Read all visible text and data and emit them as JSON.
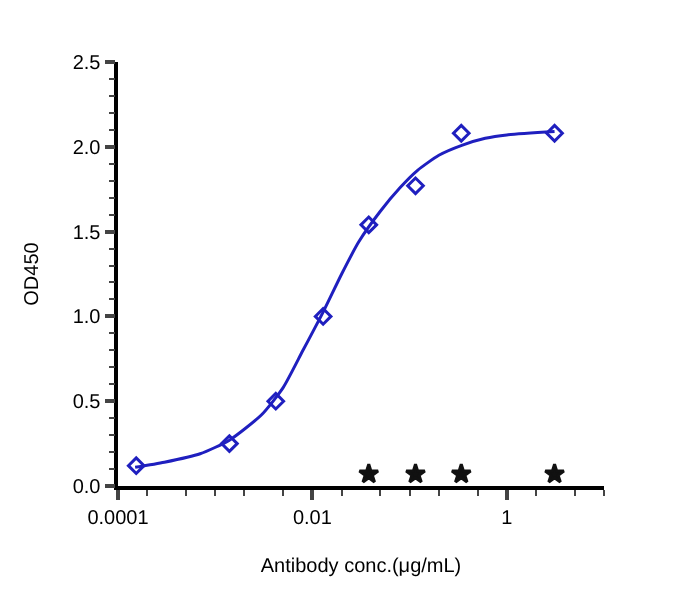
{
  "chart_data": {
    "type": "scatter",
    "xlabel": "Antibody conc.(μg/mL)",
    "ylabel": "OD450",
    "log": "x",
    "xlim": [
      0.0001,
      10
    ],
    "xticks": [
      0.0001,
      0.01,
      1
    ],
    "ylim": [
      0,
      2.5
    ],
    "yticks": [
      {
        "value": 0,
        "label": "0.0"
      },
      {
        "value": 0.5,
        "label": "0.5"
      },
      {
        "value": 1,
        "label": "1.0"
      },
      {
        "value": 1.5,
        "label": "1.5"
      },
      {
        "value": 2,
        "label": "2.0"
      },
      {
        "value": 2.5,
        "label": "2.5"
      }
    ],
    "series": [
      {
        "marker": "diamond",
        "color": "#1f1fbf",
        "x": [
          0.000154,
          0.0014,
          0.0042,
          0.0129,
          0.038,
          0.115,
          0.34,
          3.1
        ],
        "values": [
          0.12,
          0.25,
          0.5,
          1.0,
          1.54,
          1.77,
          2.08,
          2.08
        ]
      },
      {
        "type": "line",
        "marker": "none",
        "color": "#1f1fbf",
        "line_style": "solid",
        "x": [
          0.00015,
          0.0003,
          0.0007,
          0.0014,
          0.003,
          0.005,
          0.008,
          0.013,
          0.02,
          0.03,
          0.05,
          0.08,
          0.12,
          0.2,
          0.35,
          0.6,
          1,
          3.1
        ],
        "values": [
          0.11,
          0.14,
          0.19,
          0.27,
          0.42,
          0.58,
          0.8,
          1.03,
          1.25,
          1.44,
          1.62,
          1.76,
          1.86,
          1.95,
          2.01,
          2.05,
          2.07,
          2.09
        ]
      },
      {
        "marker": "star",
        "color": "#111111",
        "x": [
          0.038,
          0.115,
          0.34,
          3.1
        ],
        "values": [
          0.07,
          0.07,
          0.07,
          0.07
        ]
      }
    ]
  }
}
